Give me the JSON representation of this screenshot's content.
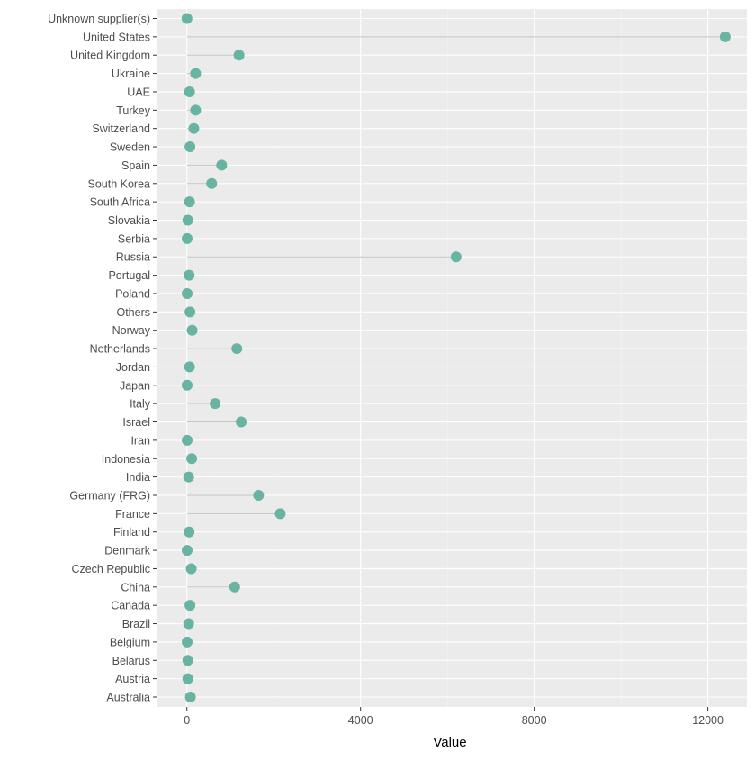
{
  "chart_data": {
    "type": "lollipop",
    "title": "",
    "xlabel": "Value",
    "ylabel": "",
    "xlim": [
      -700,
      12900
    ],
    "x_ticks": [
      0,
      4000,
      8000,
      12000
    ],
    "x_tick_labels": [
      "0",
      "4000",
      "8000",
      "12000"
    ],
    "grid": true,
    "colors": {
      "panel": "#ebebeb",
      "grid_major": "#ffffff",
      "stem": "#c4c4c4",
      "point": "#69b3a2",
      "text": "#4d4d4d",
      "axis_title": "#000000"
    },
    "categories": [
      "Unknown supplier(s)",
      "United States",
      "United Kingdom",
      "Ukraine",
      "UAE",
      "Turkey",
      "Switzerland",
      "Sweden",
      "Spain",
      "South Korea",
      "South Africa",
      "Slovakia",
      "Serbia",
      "Russia",
      "Portugal",
      "Poland",
      "Others",
      "Norway",
      "Netherlands",
      "Jordan",
      "Japan",
      "Italy",
      "Israel",
      "Iran",
      "Indonesia",
      "India",
      "Germany (FRG)",
      "France",
      "Finland",
      "Denmark",
      "Czech Republic",
      "China",
      "Canada",
      "Brazil",
      "Belgium",
      "Belarus",
      "Austria",
      "Australia"
    ],
    "values": [
      0,
      12400,
      1200,
      200,
      60,
      200,
      160,
      70,
      800,
      570,
      60,
      20,
      5,
      6200,
      50,
      5,
      70,
      120,
      1150,
      60,
      5,
      650,
      1250,
      5,
      110,
      40,
      1650,
      2150,
      50,
      5,
      100,
      1100,
      70,
      40,
      5,
      20,
      20,
      80
    ]
  }
}
